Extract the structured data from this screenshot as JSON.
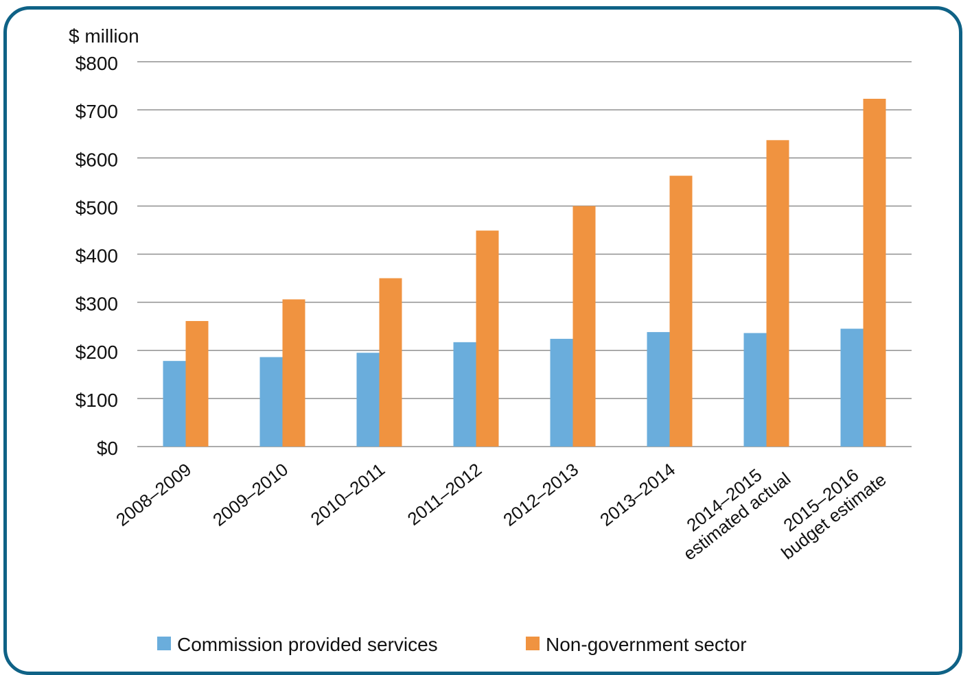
{
  "chart_data": {
    "type": "bar",
    "ylabel": "$ million",
    "ylim": [
      0,
      800
    ],
    "yticks": [
      "$0",
      "$100",
      "$200",
      "$300",
      "$400",
      "$500",
      "$600",
      "$700",
      "$800"
    ],
    "yticks_values": [
      0,
      100,
      200,
      300,
      400,
      500,
      600,
      700,
      800
    ],
    "grid": true,
    "legend_position": "bottom",
    "categories": [
      [
        "2008–2009"
      ],
      [
        "2009–2010"
      ],
      [
        "2010–2011"
      ],
      [
        "2011–2012"
      ],
      [
        "2012–2013"
      ],
      [
        "2013–2014"
      ],
      [
        "2014–2015",
        "estimated actual"
      ],
      [
        "2015–2016",
        "budget estimate"
      ]
    ],
    "series": [
      {
        "name": "Commission provided services",
        "color": "#6aaddc",
        "values": [
          178,
          186,
          195,
          217,
          224,
          238,
          236,
          245
        ]
      },
      {
        "name": "Non-government sector",
        "color": "#f09340",
        "values": [
          261,
          306,
          350,
          449,
          500,
          563,
          637,
          723
        ]
      }
    ]
  }
}
